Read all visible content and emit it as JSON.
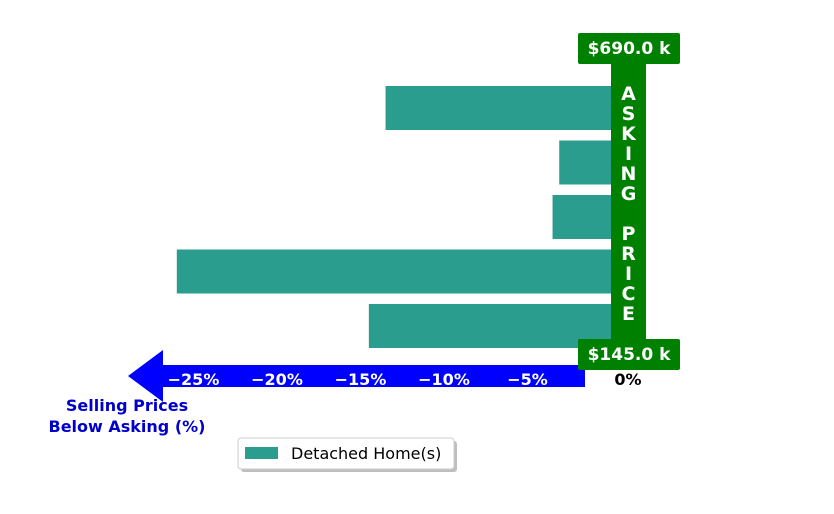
{
  "chart_data": {
    "type": "bar",
    "orientation": "horizontal",
    "categories": [
      "",
      "",
      "",
      "",
      ""
    ],
    "series": [
      {
        "name": "Detached Home(s)",
        "values": [
          -13.5,
          -3.1,
          -3.5,
          -26.0,
          -14.5
        ]
      }
    ],
    "xlim": [
      -30,
      0
    ],
    "x_ticks": [
      {
        "value": -25,
        "label": "−25%"
      },
      {
        "value": -20,
        "label": "−20%"
      },
      {
        "value": -15,
        "label": "−15%"
      },
      {
        "value": -10,
        "label": "−10%"
      },
      {
        "value": -5,
        "label": "−5%"
      },
      {
        "value": 0,
        "label": "0%"
      }
    ],
    "xlabel_lines": [
      "Selling Prices",
      "Below Asking (%)"
    ],
    "asking_price_letters": [
      "A",
      "S",
      "K",
      "I",
      "N",
      "G",
      "",
      "P",
      "R",
      "I",
      "C",
      "E"
    ],
    "max_tag": "$690.0 k",
    "min_tag": "$145.0 k",
    "legend_position": "bottom-center",
    "grid": false,
    "colors": {
      "bar": "#2a9d8f",
      "asking_column": "#008000",
      "arrow": "#0000ff",
      "xlabel": "#0000cc"
    }
  }
}
